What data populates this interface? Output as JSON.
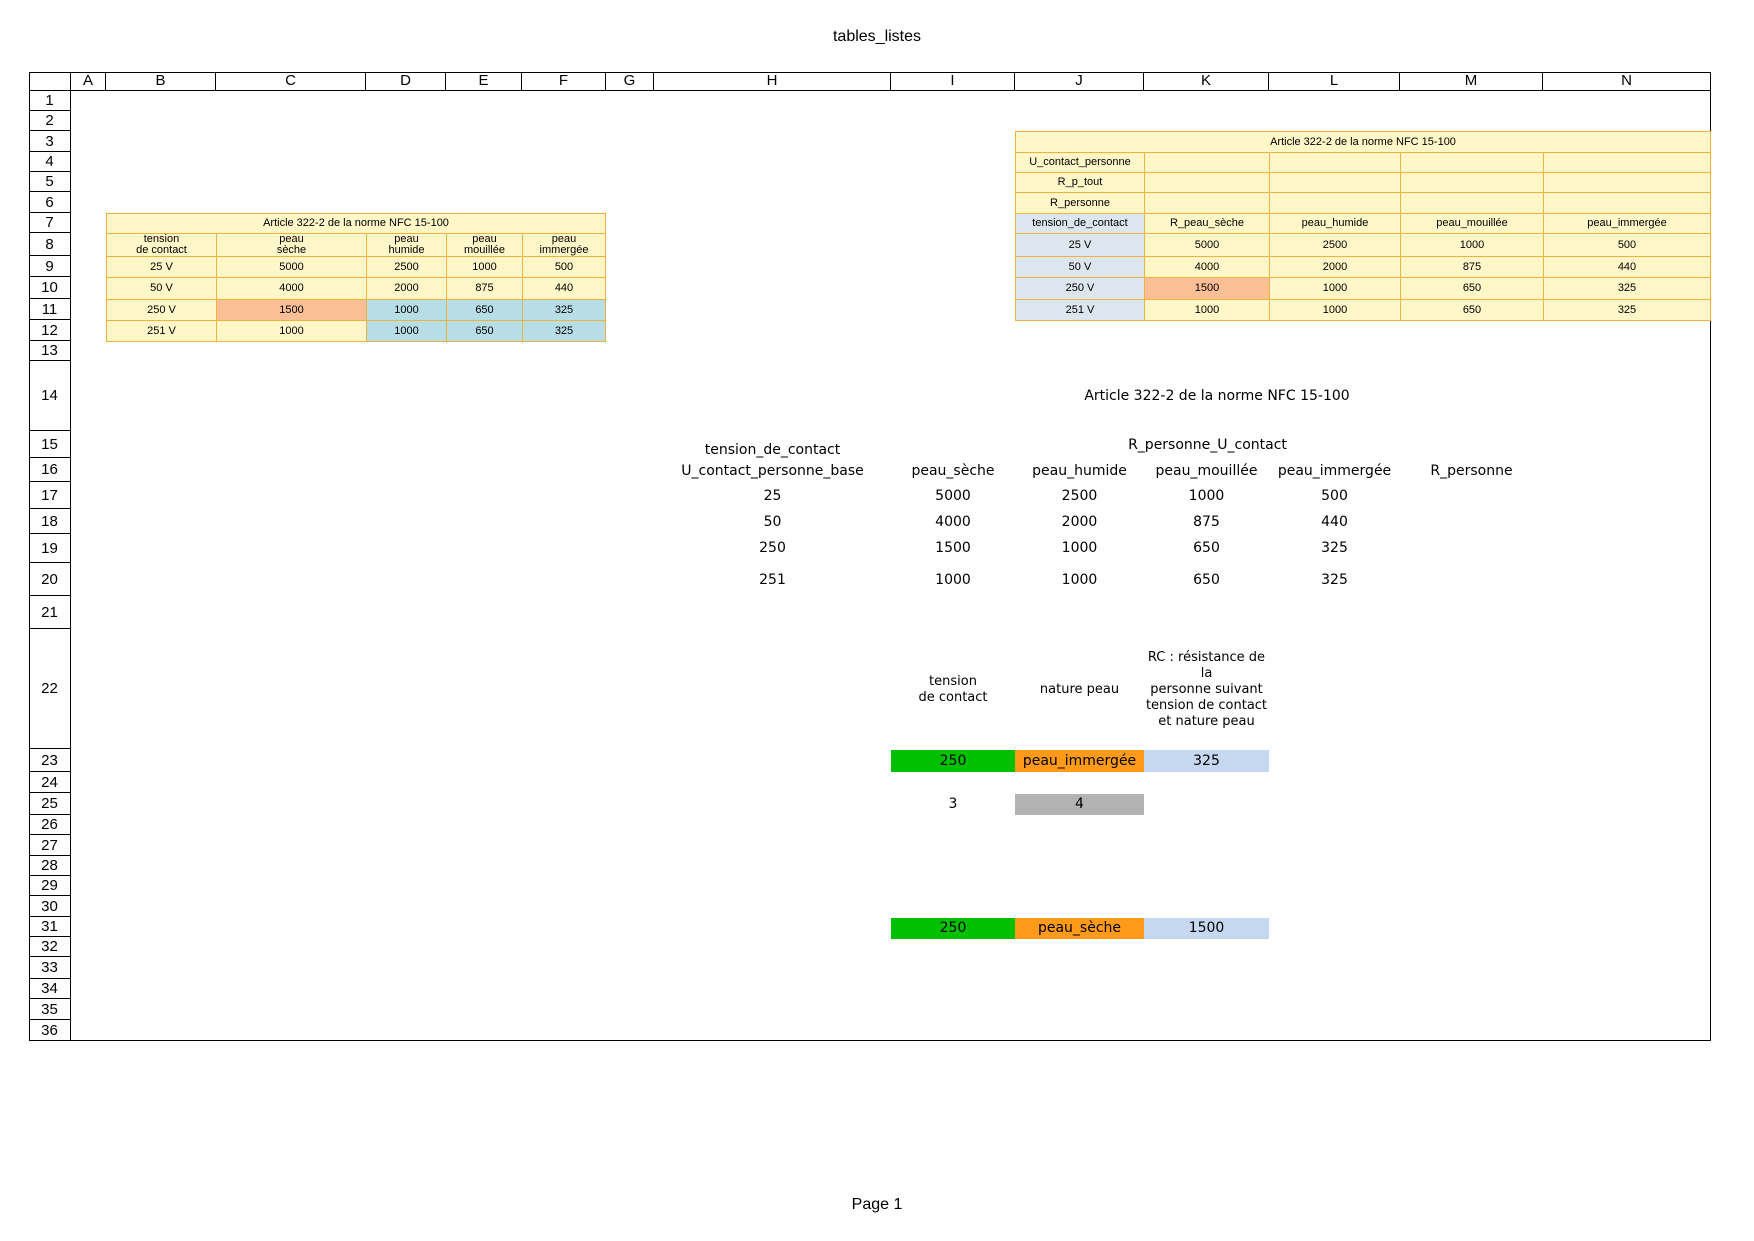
{
  "sheet": {
    "title": "tables_listes",
    "footer": "Page 1"
  },
  "columns": [
    "A",
    "B",
    "C",
    "D",
    "E",
    "F",
    "G",
    "H",
    "I",
    "J",
    "K",
    "L",
    "M",
    "N"
  ],
  "rows": [
    "1",
    "2",
    "3",
    "4",
    "5",
    "6",
    "7",
    "8",
    "9",
    "10",
    "11",
    "12",
    "13",
    "14",
    "15",
    "16",
    "17",
    "18",
    "19",
    "20",
    "21",
    "22",
    "23",
    "24",
    "25",
    "26",
    "27",
    "28",
    "29",
    "30",
    "31",
    "32",
    "33",
    "34",
    "35",
    "36"
  ],
  "table1": {
    "title": "Article 322-2 de la norme NFC 15-100",
    "headers": [
      "tension\nde contact",
      "peau\nsèche",
      "peau\nhumide",
      "peau\nmouillée",
      "peau\nimmergée"
    ],
    "rows": [
      [
        "25 V",
        "5000",
        "2500",
        "1000",
        "500"
      ],
      [
        "50 V",
        "4000",
        "2000",
        "875",
        "440"
      ],
      [
        "250 V",
        "1500",
        "1000",
        "650",
        "325"
      ],
      [
        "251 V",
        "1000",
        "1000",
        "650",
        "325"
      ]
    ]
  },
  "table2": {
    "title": "Article 322-2 de la norme NFC 15-100",
    "labels": [
      "U_contact_personne",
      "R_p_tout",
      "R_personne"
    ],
    "headers": [
      "tension_de_contact",
      "R_peau_sèche",
      "peau_humide",
      "peau_mouillée",
      "peau_immergée"
    ],
    "rows": [
      [
        "25 V",
        "5000",
        "2500",
        "1000",
        "500"
      ],
      [
        "50 V",
        "4000",
        "2000",
        "875",
        "440"
      ],
      [
        "250 V",
        "1500",
        "1000",
        "650",
        "325"
      ],
      [
        "251 V",
        "1000",
        "1000",
        "650",
        "325"
      ]
    ]
  },
  "table3": {
    "title": "Article 322-2 de la norme NFC 15-100",
    "group_header": "R_personne_U_contact",
    "tension_header": "tension_de_contact",
    "headers": [
      "U_contact_personne_base",
      "peau_sèche",
      "peau_humide",
      "peau_mouillée",
      "peau_immergée",
      "R_personne"
    ],
    "rows": [
      [
        "25",
        "5000",
        "2500",
        "1000",
        "500"
      ],
      [
        "50",
        "4000",
        "2000",
        "875",
        "440"
      ],
      [
        "250",
        "1500",
        "1000",
        "650",
        "325"
      ],
      [
        "251",
        "1000",
        "1000",
        "650",
        "325"
      ]
    ]
  },
  "lookup": {
    "headers": [
      "tension\nde contact",
      "nature peau",
      "RC : résistance de\nla\npersonne suivant\ntension de contact\net nature peau"
    ],
    "row1": [
      "250",
      "peau_immergée",
      "325"
    ],
    "indices": [
      "3",
      "4"
    ],
    "row2": [
      "250",
      "peau_sèche",
      "1500"
    ]
  },
  "colors": {
    "table_fill": "#fff7c8",
    "table_border": "#f0b23a",
    "highlight": "#fbbf96",
    "blue": "#b7dde6",
    "green": "#00c000",
    "orange": "#ff9a1a",
    "light_blue": "#c6d8ef",
    "grey": "#b3b3b3"
  }
}
